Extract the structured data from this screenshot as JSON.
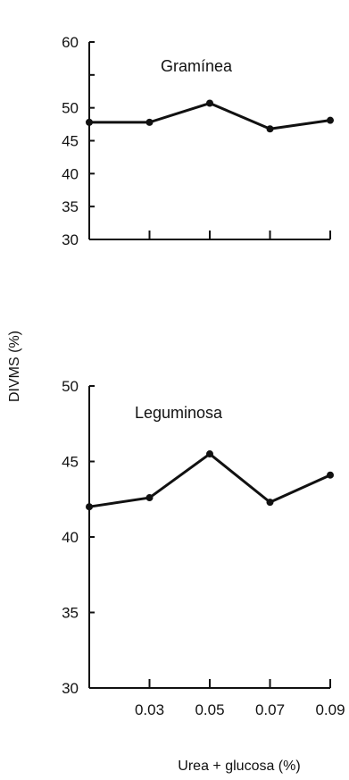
{
  "chart_data": {
    "type": "line",
    "ylabel": "DIVMS (%)",
    "xlabel": "Urea + glucosa (%)",
    "x_tick_labels": [
      "0.03",
      "0.05",
      "0.07",
      "0.09"
    ],
    "x": [
      0.01,
      0.03,
      0.05,
      0.07,
      0.09
    ],
    "xlim": [
      0.01,
      0.09
    ],
    "grid": false,
    "panels": [
      {
        "title": "Gramínea",
        "ylim": [
          30,
          60
        ],
        "y_ticks": [
          30,
          35,
          40,
          45,
          50,
          55,
          60
        ],
        "y_tick_labels": [
          "30",
          "35",
          "40",
          "45",
          "50",
          "",
          "60"
        ],
        "series": [
          {
            "values": [
              47.8,
              47.8,
              50.7,
              46.8,
              48.1
            ]
          }
        ]
      },
      {
        "title": "Leguminosa",
        "ylim": [
          30,
          50
        ],
        "y_ticks": [
          30,
          35,
          40,
          45,
          50
        ],
        "y_tick_labels": [
          "30",
          "35",
          "40",
          "45",
          "50"
        ],
        "series": [
          {
            "values": [
              42.0,
              42.6,
              45.5,
              42.3,
              44.1
            ]
          }
        ]
      }
    ]
  }
}
